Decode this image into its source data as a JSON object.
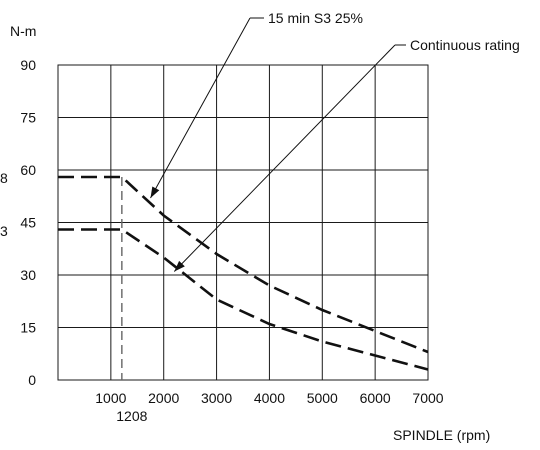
{
  "chart_data": {
    "type": "line",
    "ylabel": "N-m",
    "xlabel": "SPINDLE (rpm)",
    "xlim": [
      0,
      7000
    ],
    "ylim": [
      0,
      90
    ],
    "x_ticks": [
      1000,
      2000,
      3000,
      4000,
      5000,
      6000,
      7000
    ],
    "x_tick_labels": [
      "1000",
      "2000",
      "3000",
      "4000",
      "5000",
      "6000",
      "7000"
    ],
    "y_ticks": [
      0,
      15,
      30,
      45,
      60,
      75,
      90
    ],
    "y_tick_labels": [
      "0",
      "15",
      "30",
      "45",
      "60",
      "75",
      "90"
    ],
    "grid": true,
    "base_speed": 1208,
    "base_speed_label": "1208",
    "left_edge_labels": [
      "8",
      "3"
    ],
    "series": [
      {
        "name": "15 min S3 25%",
        "x": [
          0,
          1208,
          2000,
          3000,
          4000,
          5000,
          6000,
          7000
        ],
        "values": [
          58,
          58,
          47,
          36,
          27,
          20,
          14,
          8
        ]
      },
      {
        "name": "Continuous rating",
        "x": [
          0,
          1208,
          2000,
          3000,
          4000,
          5000,
          6000,
          7000
        ],
        "values": [
          43,
          43,
          35,
          23,
          16,
          11,
          7,
          3
        ]
      }
    ],
    "annotations": [
      "15 min S3 25%",
      "Continuous rating"
    ],
    "colors": {
      "lines": "#111111",
      "grid": "#1a1a1a"
    }
  }
}
